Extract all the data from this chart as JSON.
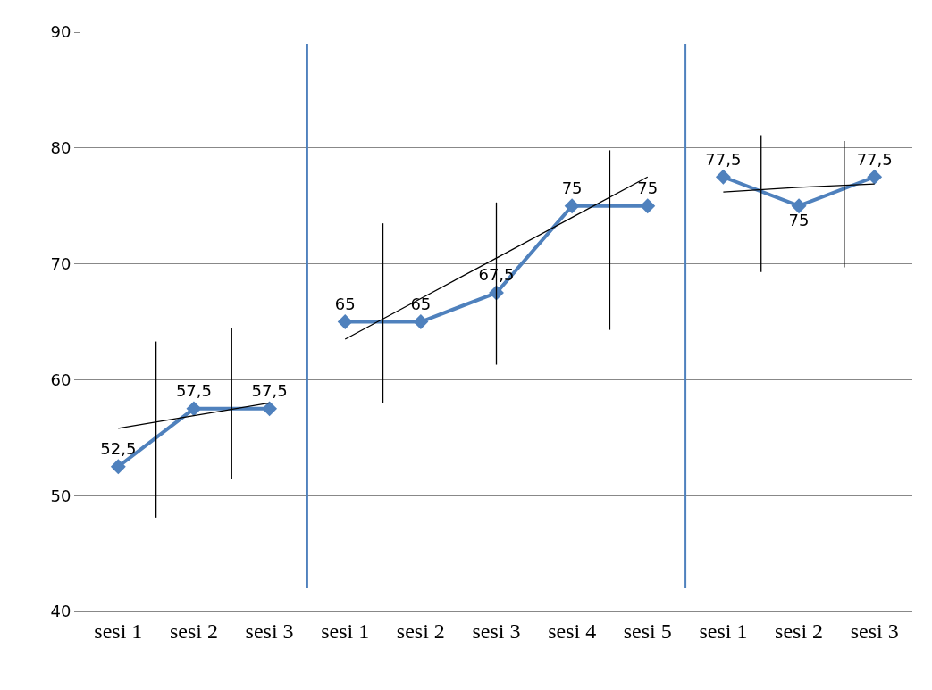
{
  "chart_data": {
    "type": "line",
    "categories": [
      "sesi 1",
      "sesi 2",
      "sesi 3",
      "sesi 1",
      "sesi 2",
      "sesi 3",
      "sesi 4",
      "sesi 5",
      "sesi 1",
      "sesi 2",
      "sesi 3"
    ],
    "ylim": [
      40,
      90
    ],
    "yticks": [
      40,
      50,
      60,
      70,
      80,
      90
    ],
    "grid": "y",
    "series": [
      {
        "color": "#4f81bd",
        "values": [
          52.5,
          57.5,
          57.5,
          null,
          null,
          null,
          null,
          null,
          null,
          null,
          null
        ],
        "value_labels": [
          "52,5",
          "57,5",
          "57,5",
          null,
          null,
          null,
          null,
          null,
          null,
          null,
          null
        ],
        "marker": "diamond"
      },
      {
        "color": "#4f81bd",
        "values": [
          null,
          null,
          null,
          65,
          65,
          67.5,
          75,
          75,
          null,
          null,
          null
        ],
        "value_labels": [
          null,
          null,
          null,
          "65",
          "65",
          "67,5",
          "75",
          "75",
          null,
          null,
          null
        ],
        "marker": "diamond"
      },
      {
        "color": "#4f81bd",
        "values": [
          null,
          null,
          null,
          null,
          null,
          null,
          null,
          null,
          77.5,
          75,
          77.5
        ],
        "value_labels": [
          null,
          null,
          null,
          null,
          null,
          null,
          null,
          null,
          "77,5",
          "75",
          "77,5"
        ],
        "marker": "diamond"
      },
      {
        "color": "#000000",
        "values": [
          55.8,
          56.9,
          58.0,
          null,
          null,
          null,
          null,
          null,
          null,
          null,
          null
        ],
        "marker": "none"
      },
      {
        "color": "#000000",
        "values": [
          null,
          null,
          null,
          63.5,
          67.0,
          70.5,
          74.0,
          77.5,
          null,
          null,
          null
        ],
        "marker": "none"
      },
      {
        "color": "#000000",
        "values": [
          null,
          null,
          null,
          null,
          null,
          null,
          null,
          null,
          76.2,
          76.6,
          76.9
        ],
        "marker": "none"
      }
    ]
  }
}
